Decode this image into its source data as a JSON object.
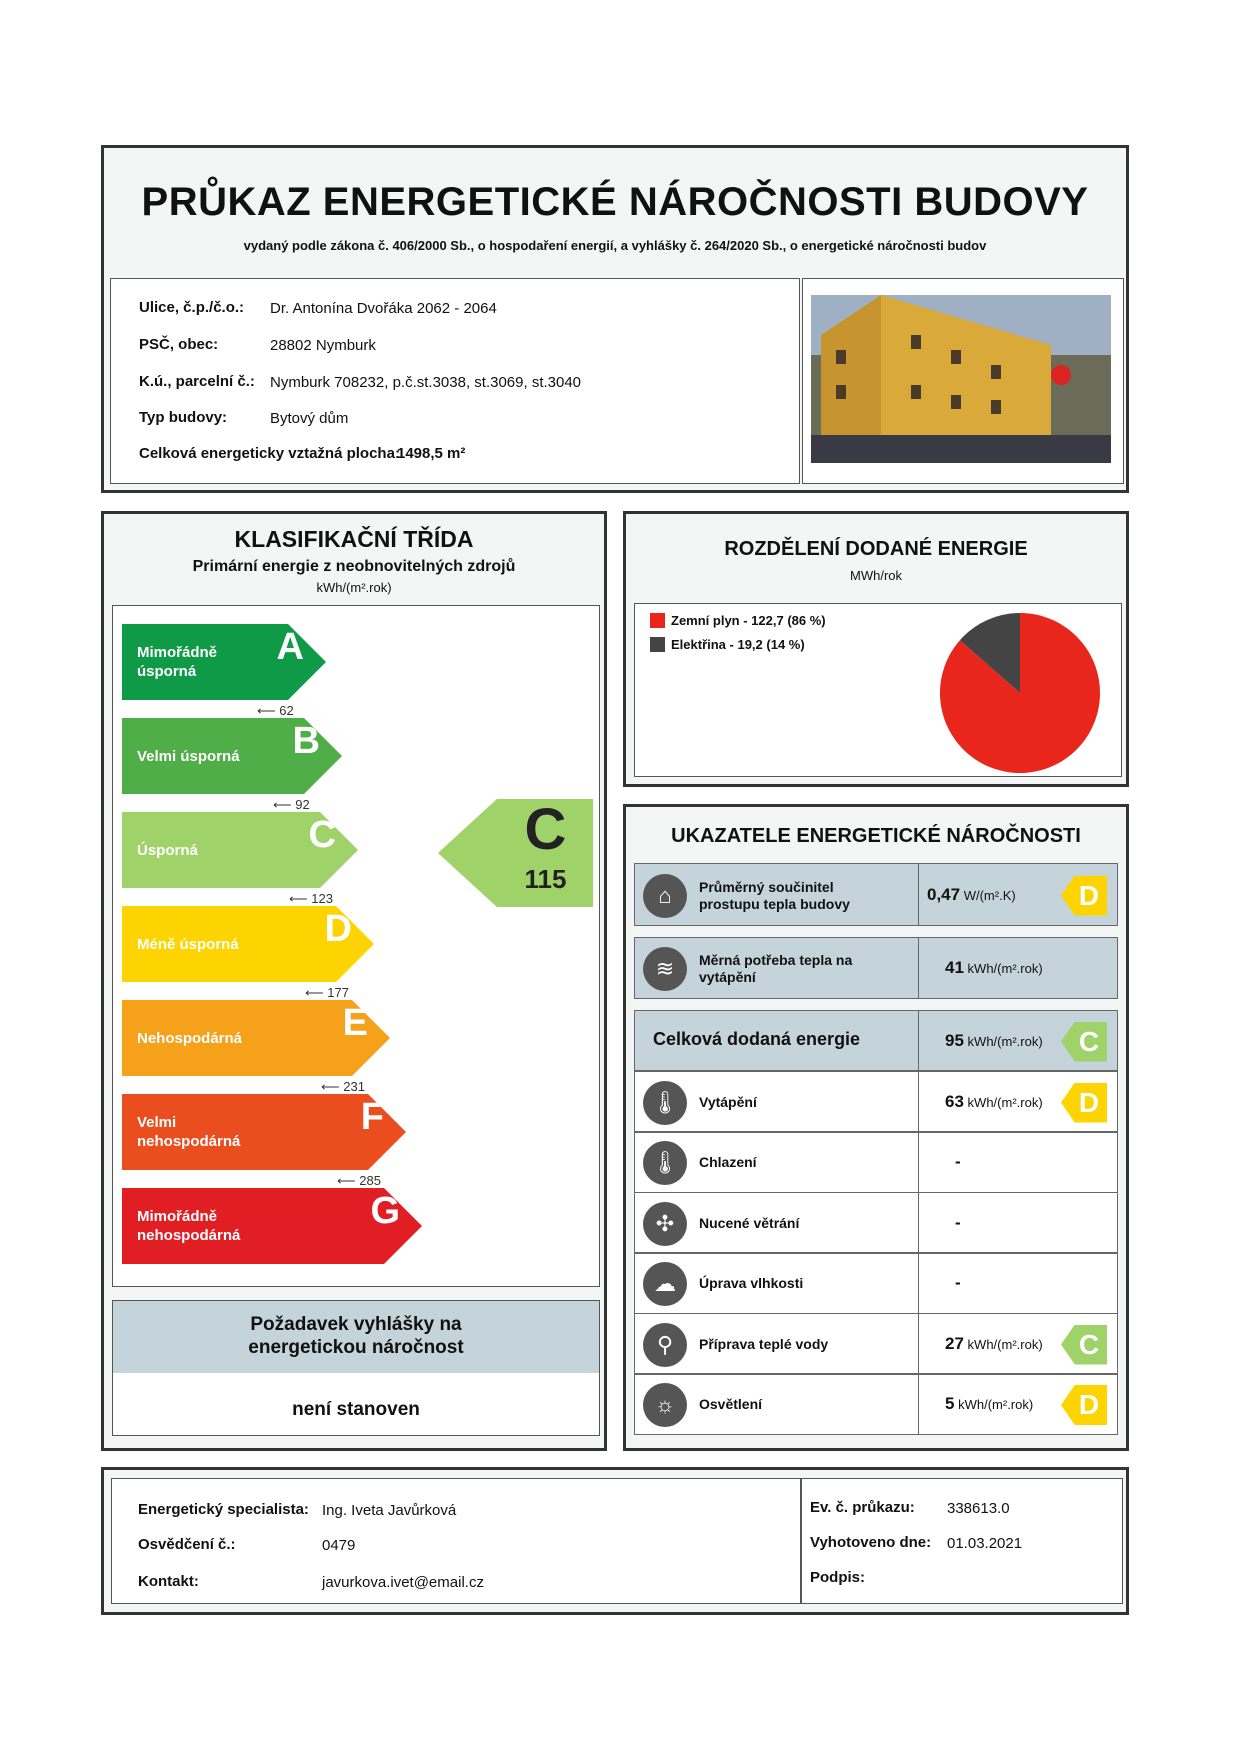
{
  "header": {
    "title": "PRŮKAZ ENERGETICKÉ NÁROČNOSTI BUDOVY",
    "subtitle": "vydaný podle zákona č. 406/2000 Sb., o hospodaření energií, a vyhlášky č. 264/2020 Sb., o energetické náročnosti budov"
  },
  "building": {
    "street_label": "Ulice, č.p./č.o.:",
    "street": "Dr. Antonína Dvořáka 2062 - 2064",
    "city_label": "PSČ, obec:",
    "city": "28802 Nymburk",
    "parcel_label": "K.ú., parcelní č.:",
    "parcel": "Nymburk 708232, p.č.st.3038, st.3069, st.3040",
    "type_label": "Typ budovy:",
    "type": "Bytový dům",
    "area_label": "Celková energeticky vztažná plocha:",
    "area": "1498,5 m²"
  },
  "classification": {
    "title": "KLASIFIKAČNÍ TŘÍDA",
    "subtitle": "Primární energie z neobnovitelných zdrojů",
    "unit": "kWh/(m².rok)",
    "bands": [
      {
        "letter": "A",
        "label": "Mimořádně úsporná",
        "color": "#0f9a47",
        "threshold": "62"
      },
      {
        "letter": "B",
        "label": "Velmi úsporná",
        "color": "#4fae47",
        "threshold": "92"
      },
      {
        "letter": "C",
        "label": "Úsporná",
        "color": "#9fd36a",
        "threshold": "123"
      },
      {
        "letter": "D",
        "label": "Méně úsporná",
        "color": "#fdd400",
        "threshold": "177"
      },
      {
        "letter": "E",
        "label": "Nehospodárná",
        "color": "#f6a11a",
        "threshold": "231"
      },
      {
        "letter": "F",
        "label": "Velmi nehospodárná",
        "color": "#ea4d1e",
        "threshold": "285"
      },
      {
        "letter": "G",
        "label": "Mimořádně nehospodárná",
        "color": "#e21e25",
        "threshold": ""
      }
    ],
    "current_class": "C",
    "current_value": "115",
    "requirement_title": "Požadavek vyhlášky na energetickou náročnost",
    "requirement_value": "není stanoven"
  },
  "distribution": {
    "title": "ROZDĚLENÍ DODANÉ ENERGIE",
    "unit": "MWh/rok",
    "chart_data": {
      "type": "pie",
      "series": [
        {
          "name": "Zemní plyn - 122,7 (86 %)",
          "value": 122.7,
          "percent": 86,
          "color": "#e8261c"
        },
        {
          "name": "Elektřina - 19,2 (14 %)",
          "value": 19.2,
          "percent": 14,
          "color": "#444444"
        }
      ],
      "legend": "top-left"
    }
  },
  "indicators": {
    "title": "UKAZATELE ENERGETICKÉ NÁROČNOSTI",
    "rows": [
      {
        "label": "Průměrný součinitel prostupu tepla budovy",
        "value": "0,47",
        "unit": "W/(m².K)",
        "class": "D",
        "icon": "house-icon"
      },
      {
        "label": "Měrná potřeba tepla na vytápění",
        "value": "41",
        "unit": "kWh/(m².rok)",
        "class": "",
        "icon": "heat-thermometer-icon"
      },
      {
        "label": "Celková dodaná energie",
        "value": "95",
        "unit": "kWh/(m².rok)",
        "class": "C",
        "icon": ""
      },
      {
        "label": "Vytápění",
        "value": "63",
        "unit": "kWh/(m².rok)",
        "class": "D",
        "icon": "heating-thermometer-icon"
      },
      {
        "label": "Chlazení",
        "value": "-",
        "unit": "",
        "class": "",
        "icon": "cooling-thermometer-icon"
      },
      {
        "label": "Nucené větrání",
        "value": "-",
        "unit": "",
        "class": "",
        "icon": "fan-icon"
      },
      {
        "label": "Úprava vlhkosti",
        "value": "-",
        "unit": "",
        "class": "",
        "icon": "humidity-icon"
      },
      {
        "label": "Příprava teplé vody",
        "value": "27",
        "unit": "kWh/(m².rok)",
        "class": "C",
        "icon": "faucet-icon"
      },
      {
        "label": "Osvětlení",
        "value": "5",
        "unit": "kWh/(m².rok)",
        "class": "D",
        "icon": "lightbulb-icon"
      }
    ],
    "class_colors": {
      "C": "#9fd36a",
      "D": "#fdd400"
    }
  },
  "footer": {
    "specialist_label": "Energetický specialista:",
    "specialist": "Ing. Iveta Javůrková",
    "cert_label": "Osvědčení č.:",
    "cert": "0479",
    "contact_label": "Kontakt:",
    "contact": "javurkova.ivet@email.cz",
    "ev_label": "Ev. č. průkazu:",
    "ev": "338613.0",
    "date_label": "Vyhotoveno dne:",
    "date": "01.03.2021",
    "sign_label": "Podpis:"
  }
}
